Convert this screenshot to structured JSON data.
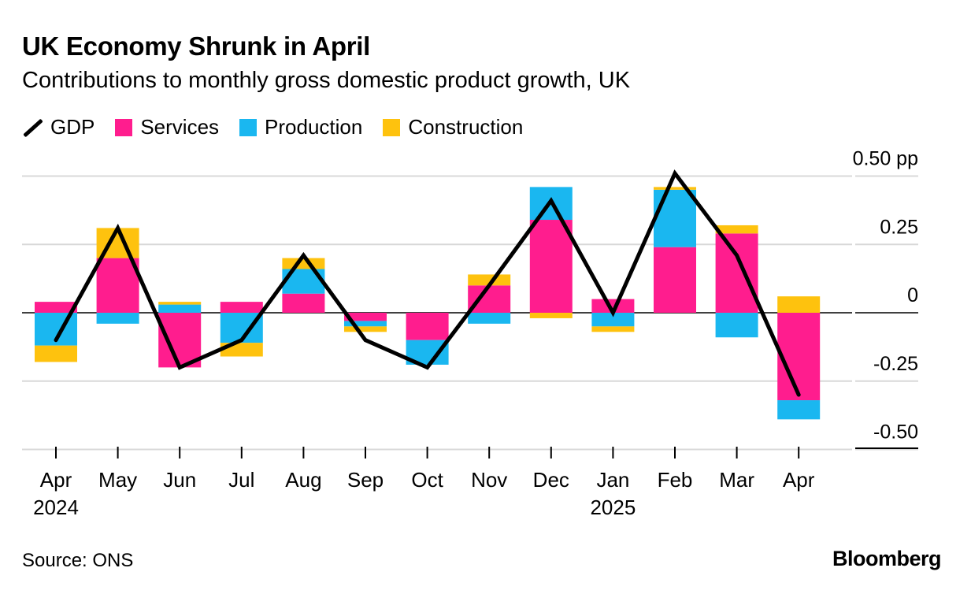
{
  "chart_data": {
    "type": "bar",
    "stacked": true,
    "title": "UK Economy Shrunk in April",
    "subtitle": "Contributions to monthly gross domestic product growth, UK",
    "categories": [
      "Apr",
      "May",
      "Jun",
      "Jul",
      "Aug",
      "Sep",
      "Oct",
      "Nov",
      "Dec",
      "Jan",
      "Feb",
      "Mar",
      "Apr"
    ],
    "year_labels": [
      {
        "category_index": 0,
        "label": "2024"
      },
      {
        "category_index": 9,
        "label": "2025"
      }
    ],
    "series": [
      {
        "name": "Services",
        "color": "#ff1d8e",
        "values": [
          0.04,
          0.2,
          -0.2,
          0.04,
          0.07,
          -0.03,
          -0.1,
          0.1,
          0.34,
          0.05,
          0.24,
          0.29,
          -0.32
        ]
      },
      {
        "name": "Production",
        "color": "#1ab7f0",
        "values": [
          -0.12,
          -0.04,
          0.03,
          -0.11,
          0.09,
          -0.02,
          -0.09,
          -0.04,
          0.12,
          -0.05,
          0.21,
          -0.09,
          -0.07
        ]
      },
      {
        "name": "Construction",
        "color": "#fec20e",
        "values": [
          -0.06,
          0.11,
          0.01,
          -0.05,
          0.04,
          -0.02,
          0.0,
          0.04,
          -0.02,
          -0.02,
          0.01,
          0.03,
          0.06
        ]
      }
    ],
    "line": {
      "name": "GDP",
      "color": "#000000",
      "values": [
        -0.1,
        0.31,
        -0.2,
        -0.1,
        0.21,
        -0.1,
        -0.2,
        0.1,
        0.41,
        0.0,
        0.51,
        0.21,
        -0.3
      ]
    },
    "legend": [
      "GDP",
      "Services",
      "Production",
      "Construction"
    ],
    "yticks": [
      {
        "value": 0.5,
        "label": "0.50 pp"
      },
      {
        "value": 0.25,
        "label": "0.25"
      },
      {
        "value": 0,
        "label": "0"
      },
      {
        "value": -0.25,
        "label": "-0.25"
      },
      {
        "value": -0.5,
        "label": "-0.50"
      }
    ],
    "ylim": [
      -0.5,
      0.5
    ],
    "grid": true,
    "legend_position": "top-left"
  },
  "footer": {
    "source": "Source: ONS",
    "brand": "Bloomberg"
  }
}
